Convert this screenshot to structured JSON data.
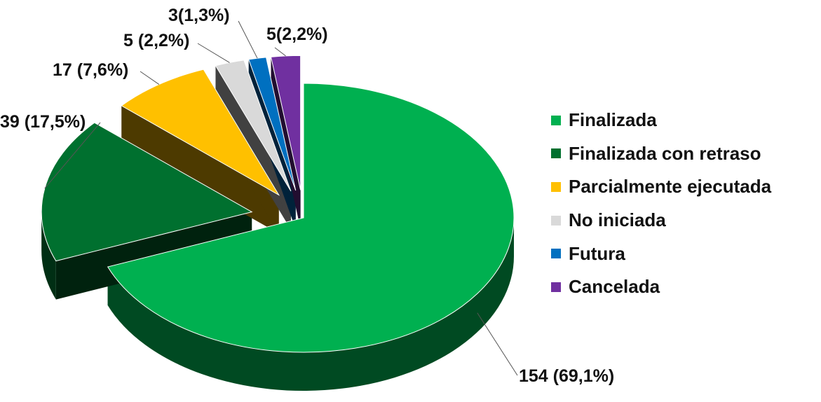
{
  "chart_data": {
    "type": "pie",
    "title": "",
    "series": [
      {
        "name": "Finalizada",
        "value": 154,
        "label": "154 (69,1%)",
        "color": "#00B050"
      },
      {
        "name": "Finalizada con retraso",
        "value": 39,
        "label": "39 (17,5%)",
        "color": "#00702F"
      },
      {
        "name": "Parcialmente ejecutada",
        "value": 17,
        "label": "17 (7,6%)",
        "color": "#FFC000"
      },
      {
        "name": "No iniciada",
        "value": 5,
        "label": "5 (2,2%)",
        "color": "#D9D9D9"
      },
      {
        "name": "Futura",
        "value": 3,
        "label": "3(1,3%)",
        "color": "#0070C0"
      },
      {
        "name": "Cancelada",
        "value": 5,
        "label": "5(2,2%)",
        "color": "#7030A0"
      }
    ],
    "legend_position": "right",
    "exploded": true,
    "three_d": true
  }
}
